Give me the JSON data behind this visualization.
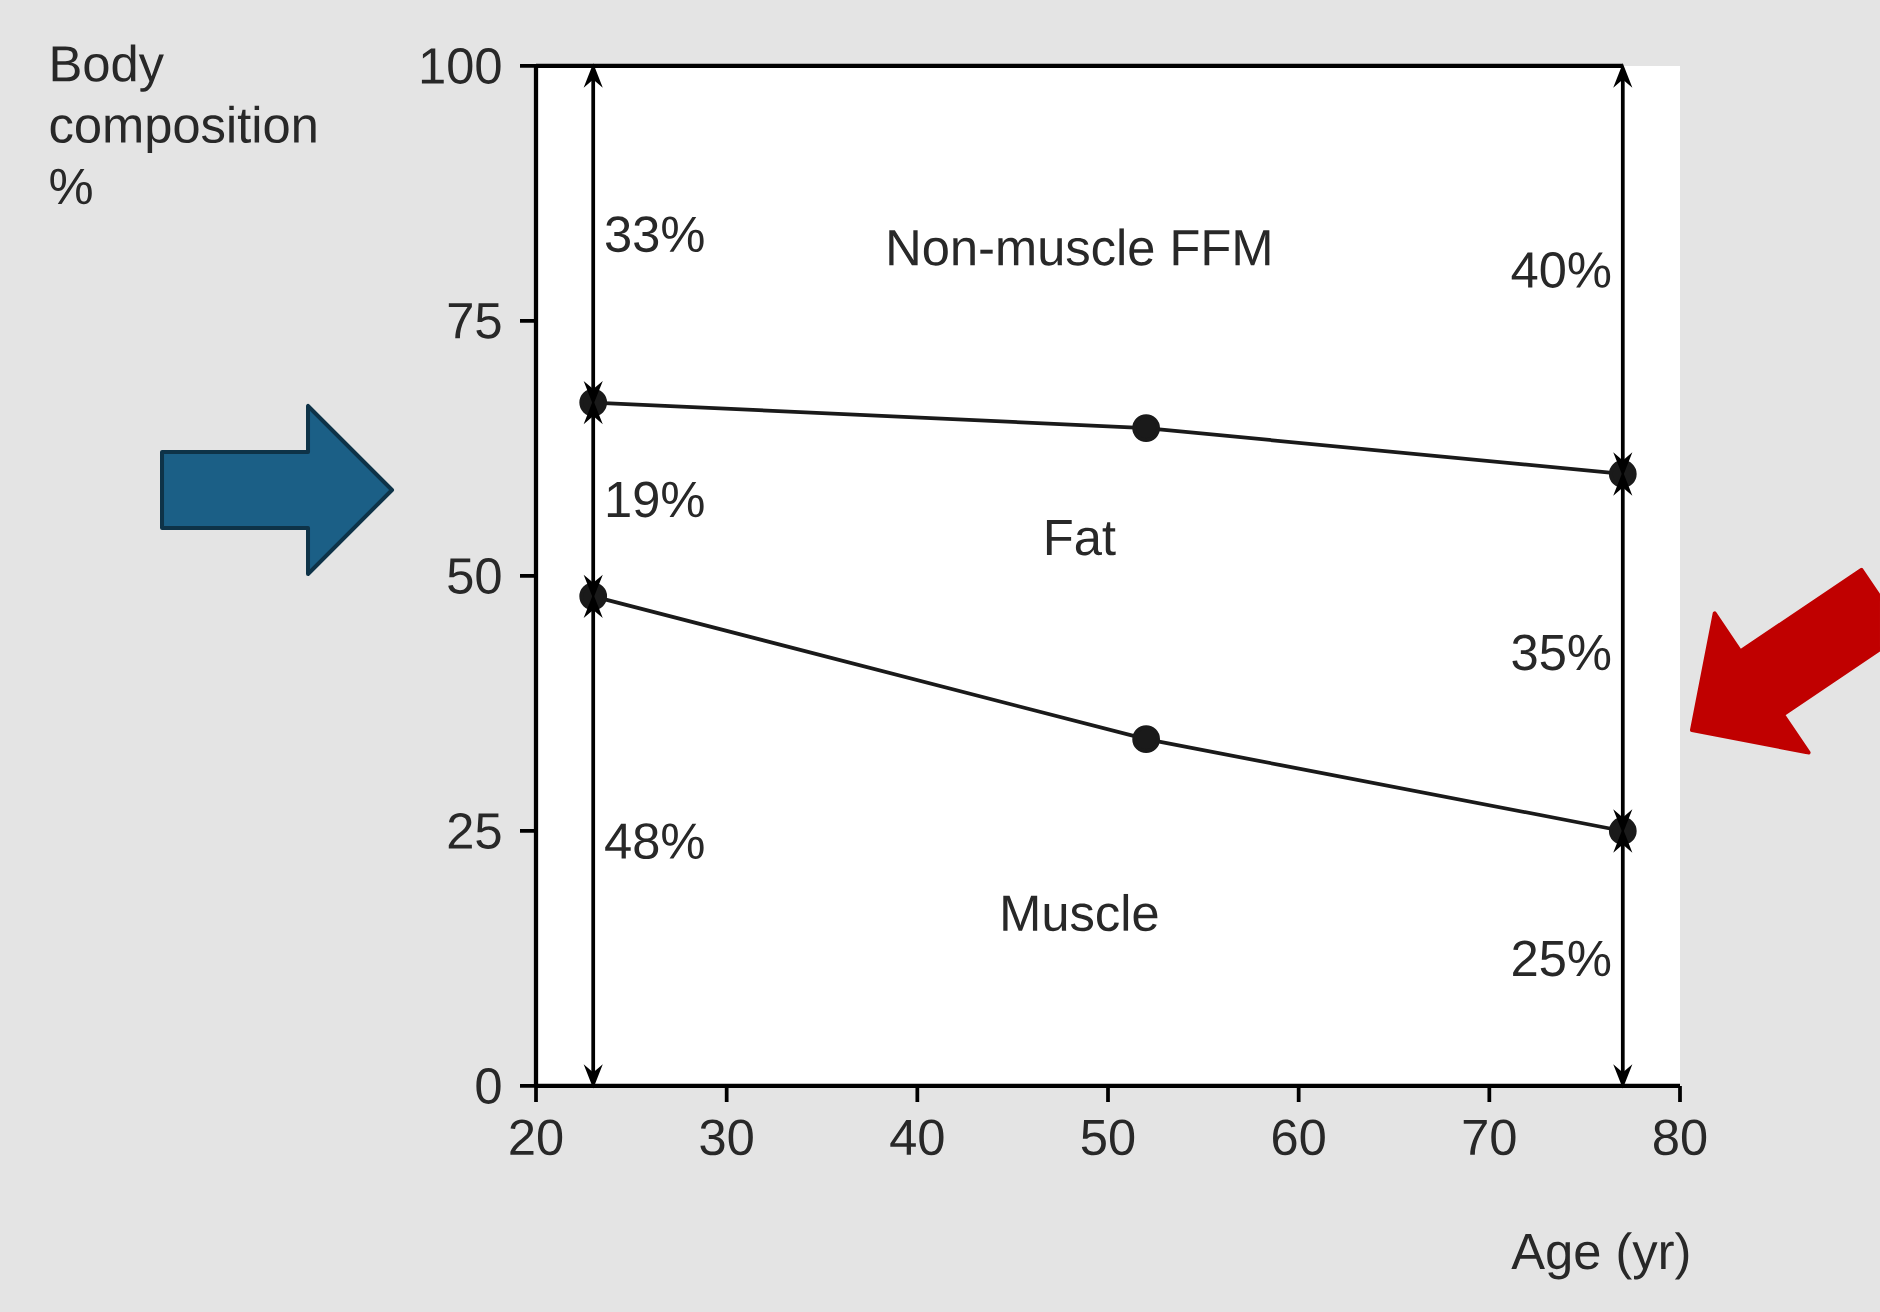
{
  "chart_data": {
    "type": "line",
    "xlabel": "Age (yr)",
    "ylabel": "Body composition %",
    "x": [
      23,
      52,
      77
    ],
    "series": [
      {
        "color": "#1a1a1a",
        "values": [
          48,
          34,
          25
        ]
      },
      {
        "color": "#1a1a1a",
        "values": [
          67,
          64.5,
          60
        ]
      }
    ],
    "xlim": [
      20,
      80
    ],
    "ylim": [
      0,
      100
    ],
    "xticks": [
      20,
      30,
      40,
      50,
      60,
      70,
      80
    ],
    "yticks": [
      0,
      25,
      50,
      75,
      100
    ],
    "grid": false,
    "marker": "circle",
    "line_style": "solid",
    "ref_lines": [
      {
        "axis": "y",
        "value": 100
      }
    ],
    "annotations": [
      "33%",
      "19%",
      "48%",
      "40%",
      "35%",
      "25%",
      "Non-muscle FFM",
      "Fat",
      "Muscle"
    ]
  }
}
